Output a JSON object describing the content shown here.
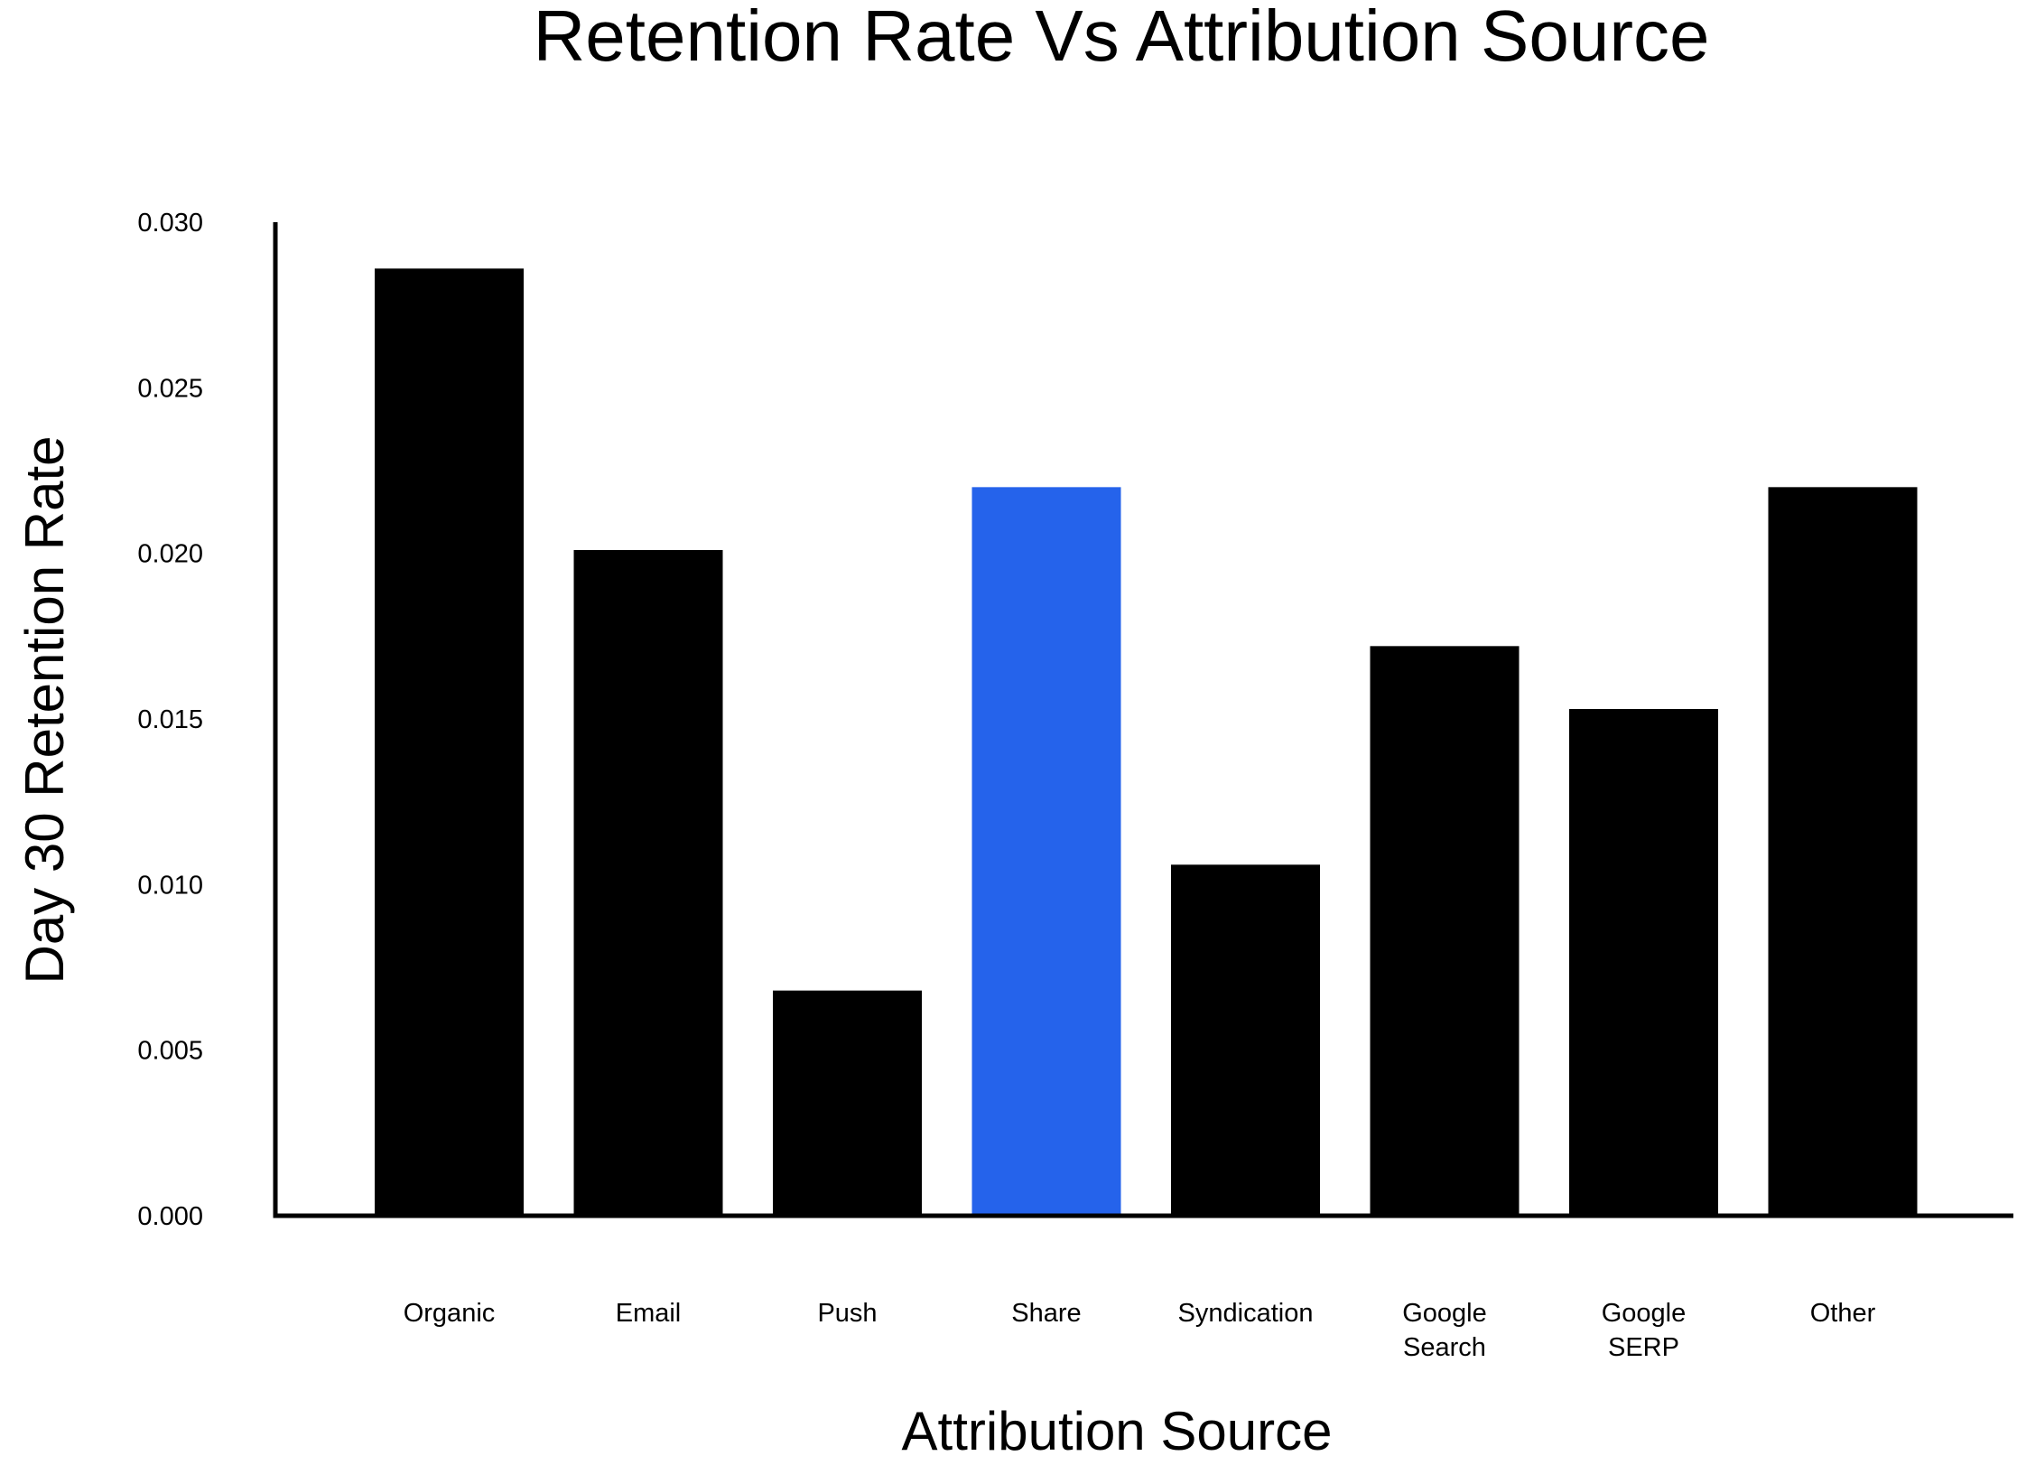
{
  "chart_data": {
    "type": "bar",
    "title": "Retention Rate Vs Attribution Source",
    "xlabel": "Attribution Source",
    "ylabel": "Day 30 Retention Rate",
    "categories": [
      [
        "Organic"
      ],
      [
        "Email"
      ],
      [
        "Push"
      ],
      [
        "Share"
      ],
      [
        "Syndication"
      ],
      [
        "Google",
        "Search"
      ],
      [
        "Google",
        "SERP"
      ],
      [
        "Other"
      ]
    ],
    "values": [
      0.0286,
      0.0201,
      0.0068,
      0.022,
      0.0106,
      0.0172,
      0.0153,
      0.022
    ],
    "ylim": [
      0,
      0.03
    ],
    "yticks": [
      "0.000",
      "0.005",
      "0.010",
      "0.015",
      "0.020",
      "0.025",
      "0.030"
    ],
    "ytick_values": [
      0,
      0.005,
      0.01,
      0.015,
      0.02,
      0.025,
      0.03
    ],
    "grid": false,
    "bar_color": "#000000",
    "highlight_color": "#2563EB",
    "highlight_category": "Share"
  }
}
